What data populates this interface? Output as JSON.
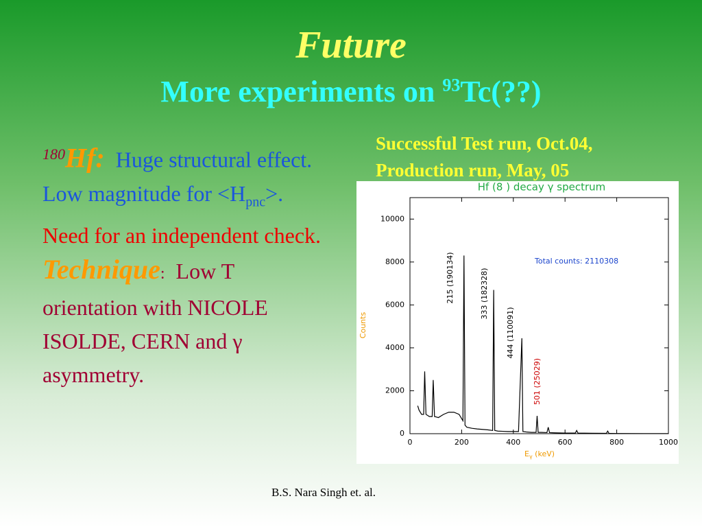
{
  "title": "Future",
  "subtitle": {
    "before": "More experiments on ",
    "sup": "93",
    "after": "Tc(??)"
  },
  "note": [
    "Successful Test run, Oct.04,",
    "Production run, May, 05"
  ],
  "left_text": {
    "isotope_sup": "180",
    "isotope": "Hf:",
    "effect": "Huge structural effect. Low magnitude for <H",
    "effect_sub": "pnc",
    "effect_end": ">.",
    "need": "Need for an independent check.",
    "technique": "Technique",
    "colon": ":",
    "technique_text": "Low T orientation with NICOLE ISOLDE, CERN and γ asymmetry."
  },
  "footer": "B.S. Nara Singh  et. al.",
  "chart_data": {
    "type": "line",
    "title": "Hf (8 ) decay γ spectrum",
    "y_label": "Counts",
    "x_label": {
      "main": "E",
      "sub": "γ",
      "unit": " (keV)"
    },
    "annotations": [
      "Total counts: 2110308",
      "215 (190134)",
      "333 (182328)",
      "444 (110091)",
      "501 (25029)"
    ],
    "x": [
      30,
      35,
      45,
      53,
      57,
      62,
      75,
      86,
      90,
      95,
      110,
      130,
      150,
      170,
      190,
      200,
      205,
      209,
      213,
      220,
      240,
      260,
      280,
      300,
      320,
      324,
      328,
      340,
      360,
      380,
      400,
      420,
      433,
      437,
      450,
      470,
      488,
      492,
      496,
      510,
      530,
      535,
      540,
      560,
      600,
      640,
      645,
      650,
      700,
      760,
      765,
      770,
      800,
      900,
      1000
    ],
    "series": [
      {
        "name": "Counts",
        "color": "#000000",
        "values": [
          1300,
          1100,
          900,
          900,
          2900,
          900,
          800,
          800,
          2500,
          800,
          750,
          900,
          1000,
          1000,
          900,
          700,
          600,
          8300,
          400,
          300,
          250,
          220,
          200,
          180,
          150,
          6700,
          150,
          120,
          110,
          100,
          100,
          100,
          4450,
          100,
          80,
          60,
          60,
          830,
          60,
          60,
          50,
          300,
          50,
          40,
          30,
          30,
          150,
          30,
          20,
          15,
          120,
          15,
          10,
          5,
          5
        ]
      }
    ],
    "xlim": [
      0,
      1000
    ],
    "xticks": [
      0,
      200,
      400,
      600,
      800,
      1000
    ],
    "ylim": [
      0,
      11000
    ],
    "yticks": [
      0,
      2000,
      4000,
      6000,
      8000,
      10000
    ]
  }
}
